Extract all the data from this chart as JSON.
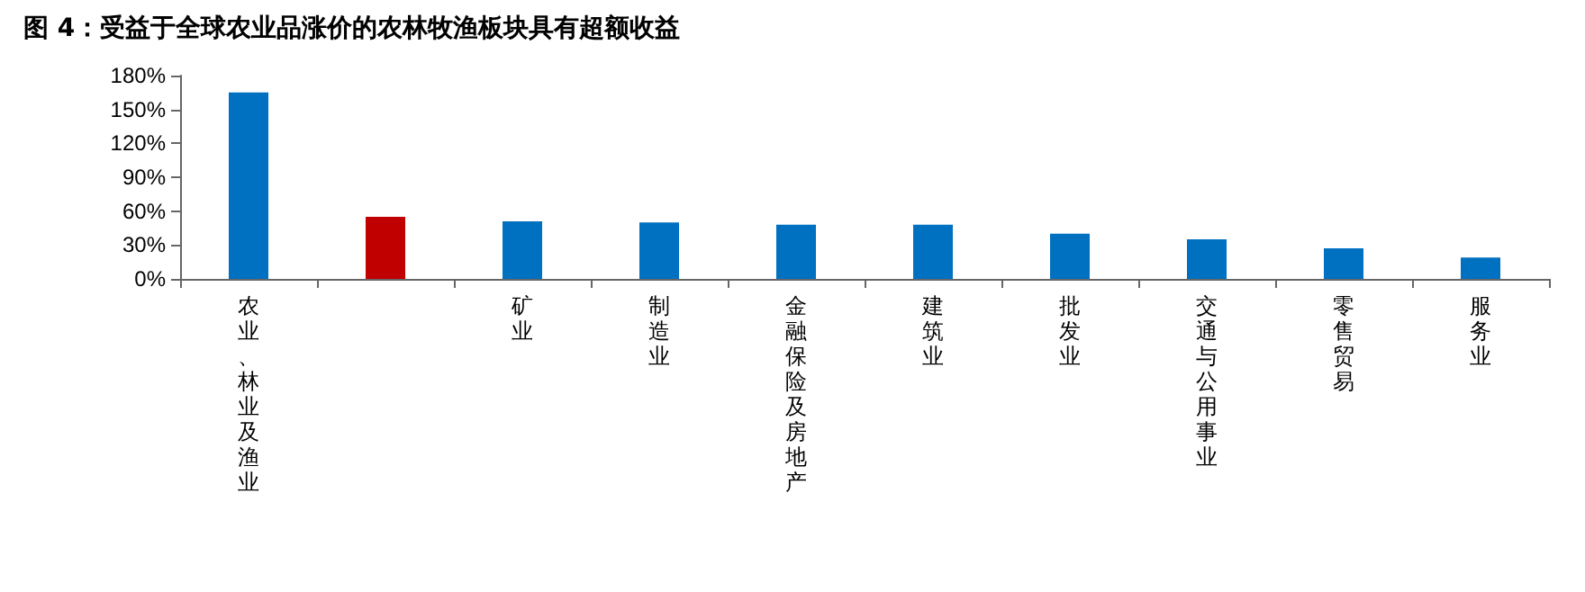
{
  "chart_data": {
    "type": "bar",
    "title": "图 4：受益于全球农业品涨价的农林牧渔板块具有超额收益",
    "categories": [
      "农业、林业及渔业",
      null,
      "矿业",
      "制造业",
      "金融保险及房地产",
      "建筑业",
      "批发业",
      "交通与公用事业",
      "零售贸易",
      "服务业"
    ],
    "values": [
      165,
      55,
      51,
      50,
      48,
      48,
      40,
      35,
      27,
      19
    ],
    "colors": [
      "#0070c0",
      "#c00000",
      "#0070c0",
      "#0070c0",
      "#0070c0",
      "#0070c0",
      "#0070c0",
      "#0070c0",
      "#0070c0",
      "#0070c0"
    ],
    "ylim": [
      0,
      180
    ],
    "yticks": [
      {
        "value": 0,
        "label": "0%"
      },
      {
        "value": 30,
        "label": "30%"
      },
      {
        "value": 60,
        "label": "60%"
      },
      {
        "value": 90,
        "label": "90%"
      },
      {
        "value": 120,
        "label": "120%"
      },
      {
        "value": 150,
        "label": "150%"
      },
      {
        "value": 180,
        "label": "180%"
      }
    ],
    "grid": false
  }
}
